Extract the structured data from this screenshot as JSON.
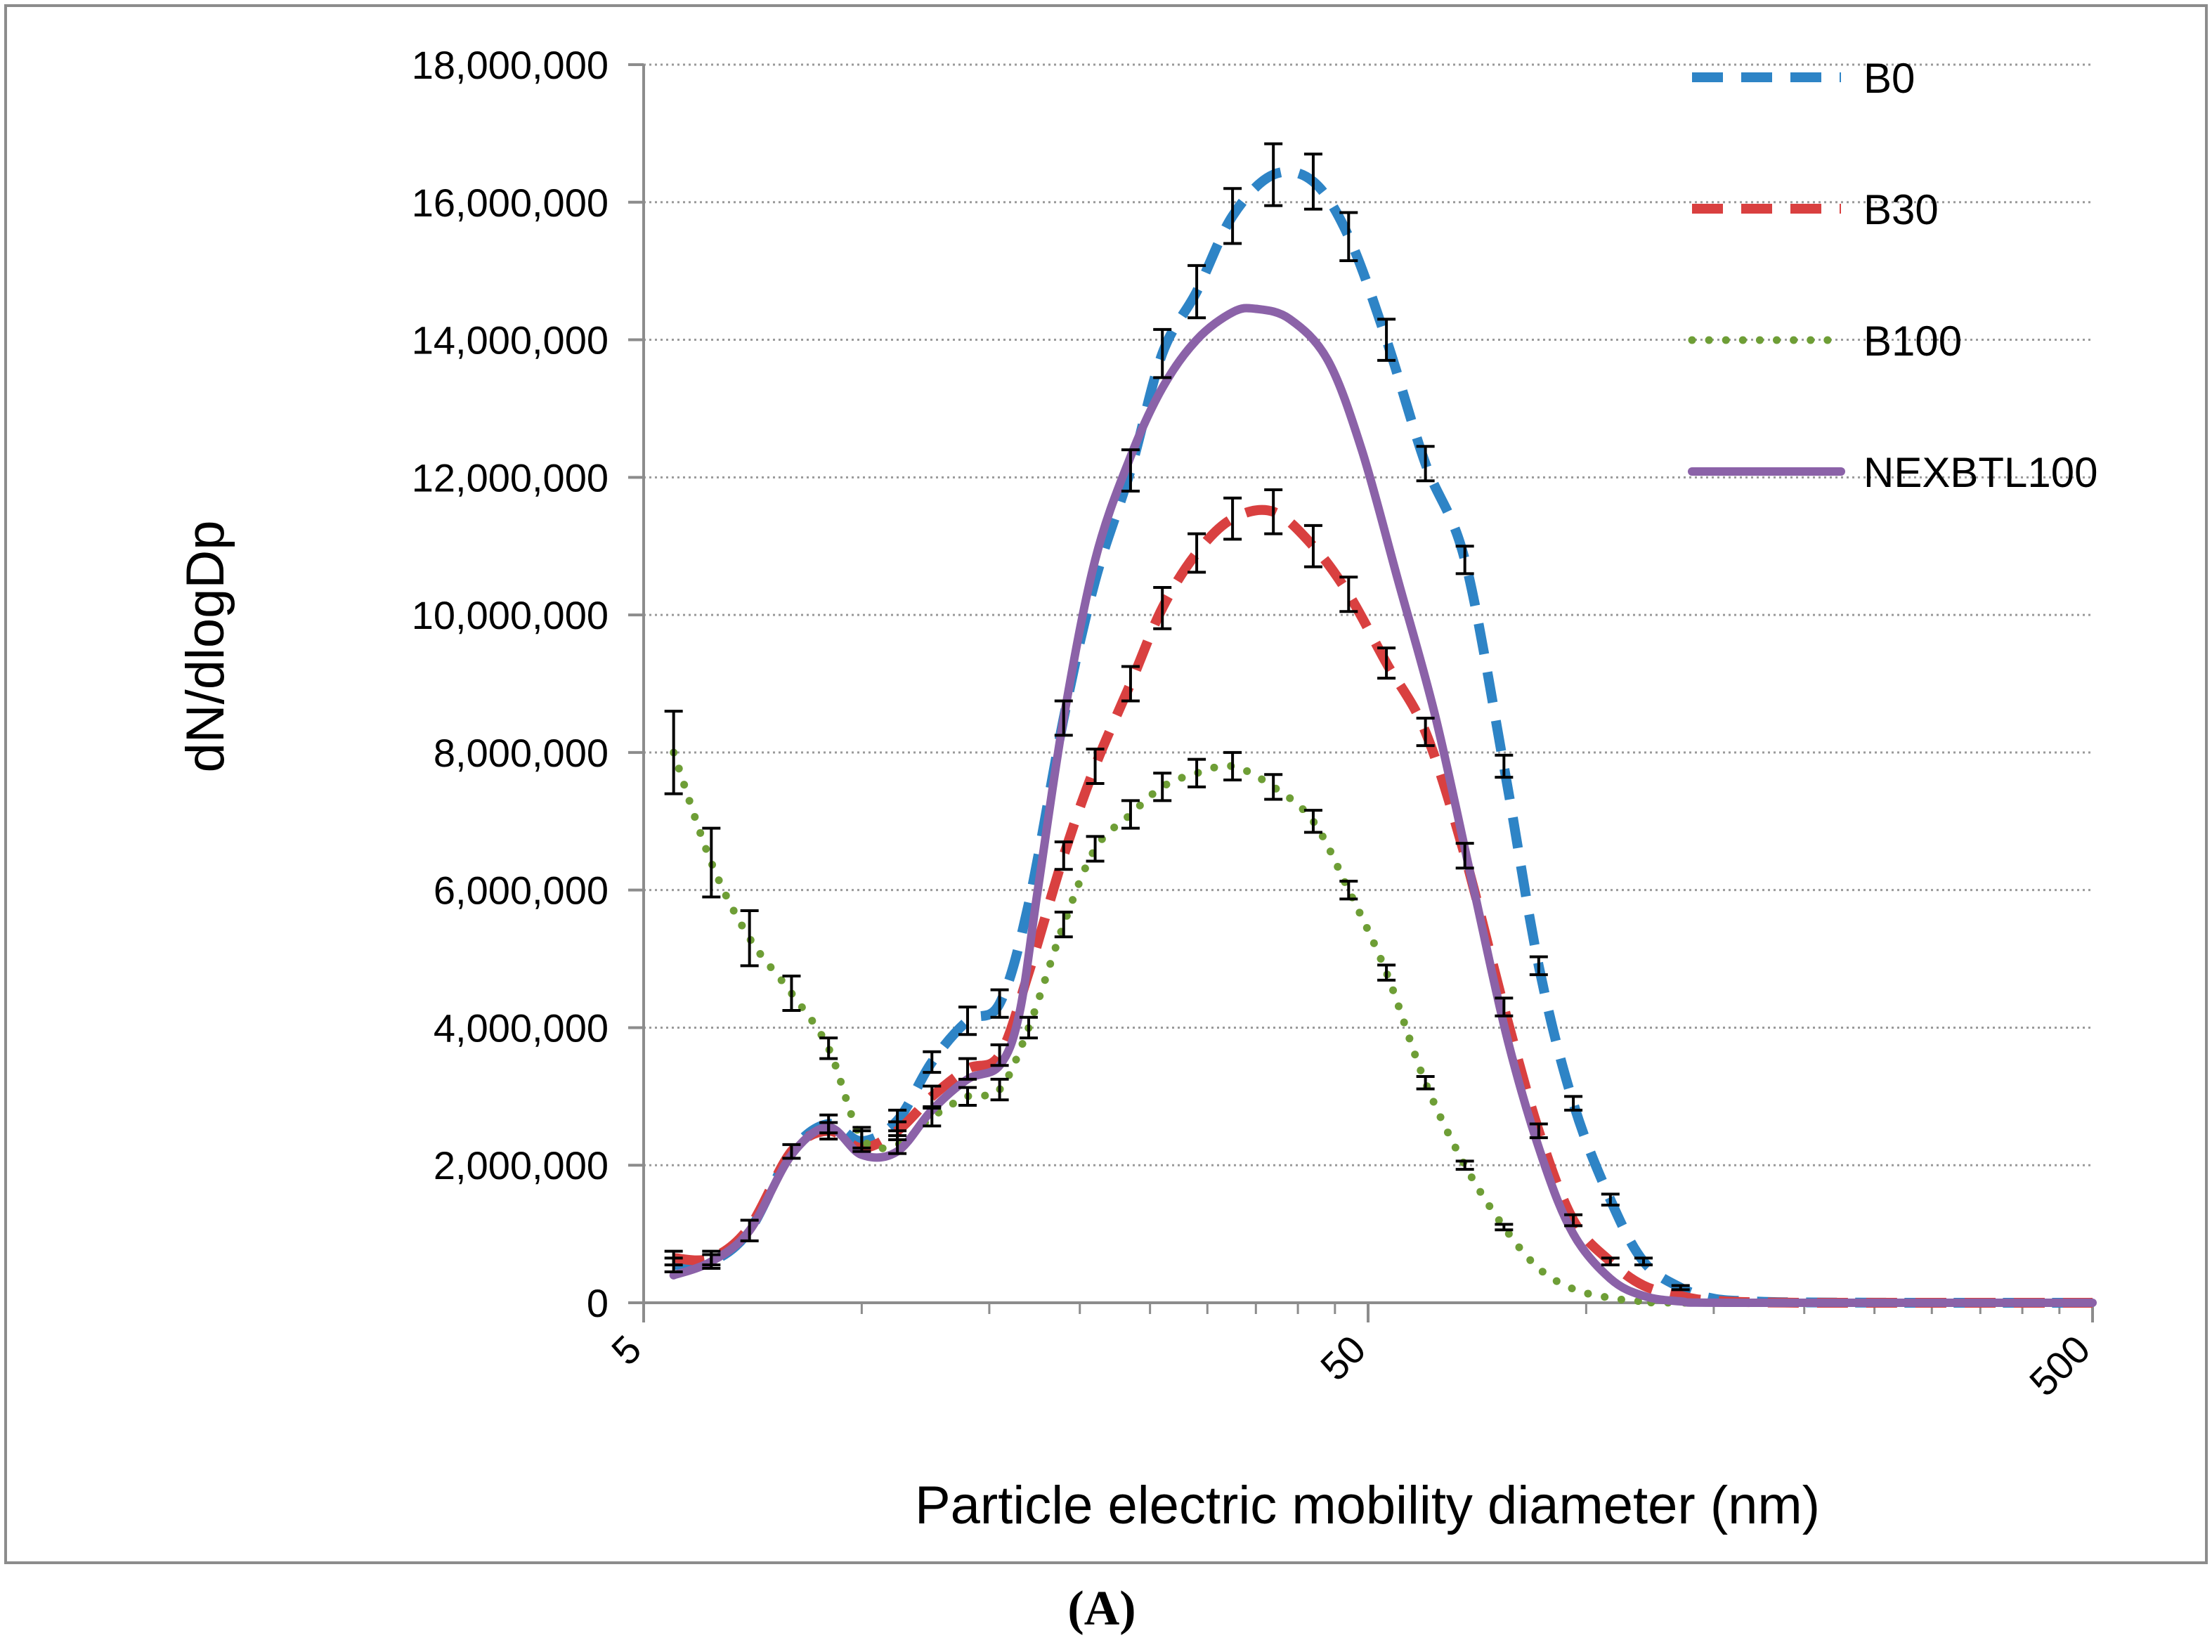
{
  "chart_data": {
    "type": "line",
    "title": "",
    "xlabel": "Particle electric mobility diameter (nm)",
    "ylabel": "dN/dlogDp",
    "x_scale": "log",
    "xlim": [
      5,
      500
    ],
    "ylim": [
      0,
      18000000
    ],
    "x_ticks": [
      {
        "value": 5,
        "label": "5"
      },
      {
        "value": 50,
        "label": "50"
      },
      {
        "value": 500,
        "label": "500"
      }
    ],
    "y_ticks": [
      {
        "value": 0,
        "label": "0"
      },
      {
        "value": 2000000,
        "label": "2,000,000"
      },
      {
        "value": 4000000,
        "label": "4,000,000"
      },
      {
        "value": 6000000,
        "label": "6,000,000"
      },
      {
        "value": 8000000,
        "label": "8,000,000"
      },
      {
        "value": 10000000,
        "label": "10,000,000"
      },
      {
        "value": 12000000,
        "label": "12,000,000"
      },
      {
        "value": 14000000,
        "label": "14,000,000"
      },
      {
        "value": 16000000,
        "label": "16,000,000"
      },
      {
        "value": 18000000,
        "label": "18,000,000"
      }
    ],
    "grid": "horizontal dotted",
    "legend_position": "top-right",
    "caption": "(A)",
    "series": [
      {
        "name": "B0",
        "color": "#2E84C6",
        "style": "dashed",
        "points": [
          [
            5.5,
            550000
          ],
          [
            6.2,
            600000
          ],
          [
            7,
            1050000
          ],
          [
            8,
            2200000
          ],
          [
            9,
            2600000
          ],
          [
            10,
            2350000
          ],
          [
            11.2,
            2650000
          ],
          [
            12.5,
            3500000
          ],
          [
            14,
            4100000
          ],
          [
            15.5,
            4350000
          ],
          [
            17,
            5800000
          ],
          [
            19,
            8500000
          ],
          [
            21,
            10500000
          ],
          [
            23.5,
            12100000
          ],
          [
            26,
            13800000
          ],
          [
            29,
            14700000
          ],
          [
            32.5,
            15800000
          ],
          [
            37,
            16400000
          ],
          [
            42,
            16300000
          ],
          [
            47,
            15500000
          ],
          [
            53,
            14000000
          ],
          [
            60,
            12200000
          ],
          [
            68,
            10800000
          ],
          [
            77,
            7800000
          ],
          [
            86,
            4900000
          ],
          [
            96,
            2900000
          ],
          [
            108,
            1500000
          ],
          [
            120,
            600000
          ],
          [
            135,
            220000
          ],
          [
            150,
            60000
          ],
          [
            170,
            20000
          ],
          [
            200,
            5000
          ],
          [
            300,
            0
          ],
          [
            500,
            0
          ]
        ],
        "error_bars": [
          [
            5.5,
            100000
          ],
          [
            6.2,
            100000
          ],
          [
            7,
            150000
          ],
          [
            8,
            100000
          ],
          [
            9,
            130000
          ],
          [
            10,
            150000
          ],
          [
            11.2,
            150000
          ],
          [
            12.5,
            150000
          ],
          [
            14,
            200000
          ],
          [
            15.5,
            200000
          ],
          [
            19,
            250000
          ],
          [
            23.5,
            300000
          ],
          [
            26,
            350000
          ],
          [
            29,
            380000
          ],
          [
            32.5,
            400000
          ],
          [
            37,
            450000
          ],
          [
            42,
            400000
          ],
          [
            47,
            350000
          ],
          [
            53,
            300000
          ],
          [
            60,
            250000
          ],
          [
            68,
            200000
          ],
          [
            77,
            160000
          ],
          [
            86,
            130000
          ],
          [
            96,
            100000
          ],
          [
            108,
            80000
          ],
          [
            120,
            50000
          ],
          [
            135,
            30000
          ]
        ]
      },
      {
        "name": "B30",
        "color": "#D94040",
        "style": "dashed",
        "points": [
          [
            5.5,
            650000
          ],
          [
            6.2,
            650000
          ],
          [
            7,
            1100000
          ],
          [
            8,
            2200000
          ],
          [
            9,
            2500000
          ],
          [
            10,
            2250000
          ],
          [
            11.2,
            2500000
          ],
          [
            12.5,
            3000000
          ],
          [
            14,
            3400000
          ],
          [
            15.5,
            3600000
          ],
          [
            17,
            4800000
          ],
          [
            19,
            6500000
          ],
          [
            21,
            7800000
          ],
          [
            23.5,
            9000000
          ],
          [
            26,
            10100000
          ],
          [
            29,
            10900000
          ],
          [
            32.5,
            11400000
          ],
          [
            37,
            11500000
          ],
          [
            42,
            11000000
          ],
          [
            47,
            10300000
          ],
          [
            53,
            9300000
          ],
          [
            60,
            8300000
          ],
          [
            68,
            6500000
          ],
          [
            77,
            4300000
          ],
          [
            86,
            2500000
          ],
          [
            96,
            1200000
          ],
          [
            108,
            600000
          ],
          [
            120,
            250000
          ],
          [
            135,
            100000
          ],
          [
            150,
            30000
          ],
          [
            200,
            0
          ],
          [
            500,
            0
          ]
        ],
        "error_bars": [
          [
            5.5,
            100000
          ],
          [
            6.2,
            100000
          ],
          [
            9,
            120000
          ],
          [
            11.2,
            130000
          ],
          [
            12.5,
            150000
          ],
          [
            14,
            150000
          ],
          [
            15.5,
            150000
          ],
          [
            19,
            200000
          ],
          [
            21,
            250000
          ],
          [
            23.5,
            250000
          ],
          [
            26,
            300000
          ],
          [
            29,
            280000
          ],
          [
            32.5,
            300000
          ],
          [
            37,
            320000
          ],
          [
            42,
            300000
          ],
          [
            47,
            250000
          ],
          [
            53,
            220000
          ],
          [
            60,
            200000
          ],
          [
            68,
            180000
          ],
          [
            77,
            130000
          ],
          [
            86,
            100000
          ],
          [
            96,
            80000
          ],
          [
            108,
            50000
          ]
        ]
      },
      {
        "name": "B100",
        "color": "#6E9E36",
        "style": "dotted",
        "points": [
          [
            5.5,
            8000000
          ],
          [
            6.2,
            6400000
          ],
          [
            7,
            5300000
          ],
          [
            8,
            4500000
          ],
          [
            9,
            3700000
          ],
          [
            10,
            2400000
          ],
          [
            11.2,
            2300000
          ],
          [
            12.5,
            2700000
          ],
          [
            14,
            3000000
          ],
          [
            15.5,
            3100000
          ],
          [
            17,
            4000000
          ],
          [
            19,
            5500000
          ],
          [
            21,
            6600000
          ],
          [
            23.5,
            7100000
          ],
          [
            26,
            7500000
          ],
          [
            29,
            7700000
          ],
          [
            32.5,
            7800000
          ],
          [
            37,
            7500000
          ],
          [
            42,
            7000000
          ],
          [
            47,
            6000000
          ],
          [
            53,
            4800000
          ],
          [
            60,
            3200000
          ],
          [
            68,
            2000000
          ],
          [
            77,
            1100000
          ],
          [
            86,
            500000
          ],
          [
            96,
            200000
          ],
          [
            108,
            70000
          ],
          [
            120,
            20000
          ],
          [
            140,
            0
          ],
          [
            500,
            0
          ]
        ],
        "error_bars": [
          [
            5.5,
            600000
          ],
          [
            6.2,
            500000
          ],
          [
            7,
            400000
          ],
          [
            8,
            250000
          ],
          [
            9,
            150000
          ],
          [
            10,
            150000
          ],
          [
            11.2,
            130000
          ],
          [
            12.5,
            130000
          ],
          [
            14,
            130000
          ],
          [
            15.5,
            150000
          ],
          [
            17,
            150000
          ],
          [
            19,
            180000
          ],
          [
            21,
            180000
          ],
          [
            23.5,
            200000
          ],
          [
            26,
            200000
          ],
          [
            29,
            200000
          ],
          [
            32.5,
            200000
          ],
          [
            37,
            180000
          ],
          [
            42,
            160000
          ],
          [
            47,
            130000
          ],
          [
            53,
            110000
          ],
          [
            60,
            90000
          ],
          [
            68,
            60000
          ],
          [
            77,
            40000
          ]
        ]
      },
      {
        "name": "NEXBTL100",
        "color": "#8B62A8",
        "style": "solid",
        "points": [
          [
            5.5,
            400000
          ],
          [
            6.2,
            600000
          ],
          [
            7,
            1050000
          ],
          [
            8,
            2150000
          ],
          [
            9,
            2550000
          ],
          [
            10,
            2150000
          ],
          [
            11.2,
            2200000
          ],
          [
            12.5,
            2800000
          ],
          [
            14,
            3250000
          ],
          [
            15.5,
            3450000
          ],
          [
            16.5,
            4200000
          ],
          [
            17.5,
            6000000
          ],
          [
            19,
            8500000
          ],
          [
            21,
            10800000
          ],
          [
            23.5,
            12300000
          ],
          [
            26,
            13300000
          ],
          [
            29,
            14000000
          ],
          [
            32.5,
            14400000
          ],
          [
            35,
            14450000
          ],
          [
            39,
            14300000
          ],
          [
            44,
            13700000
          ],
          [
            49,
            12400000
          ],
          [
            55,
            10500000
          ],
          [
            62,
            8500000
          ],
          [
            70,
            6000000
          ],
          [
            78,
            3800000
          ],
          [
            87,
            2100000
          ],
          [
            96,
            1000000
          ],
          [
            108,
            350000
          ],
          [
            120,
            100000
          ],
          [
            135,
            20000
          ],
          [
            160,
            0
          ],
          [
            500,
            0
          ]
        ],
        "error_bars": []
      }
    ]
  }
}
